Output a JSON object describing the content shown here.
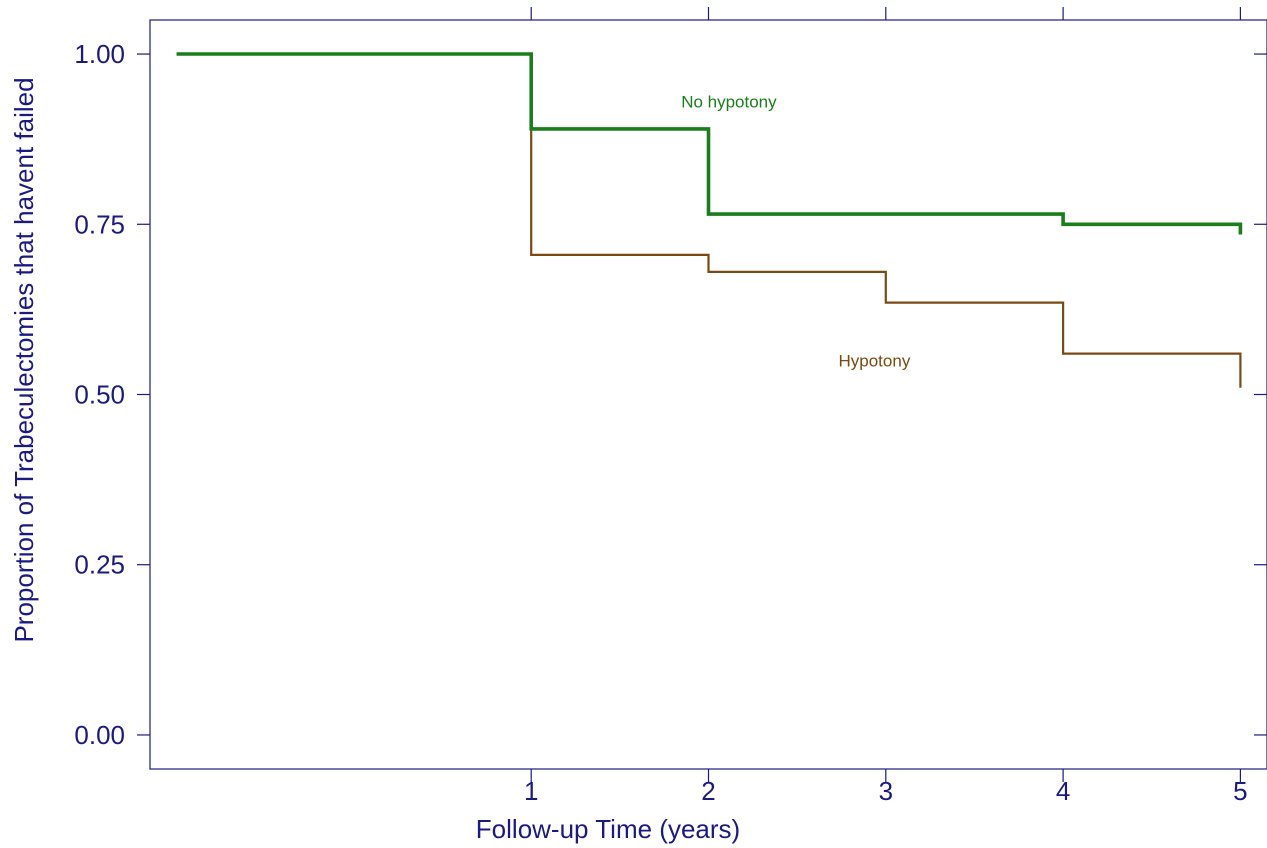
{
  "chart_data": {
    "type": "line",
    "step": true,
    "title": "",
    "xlabel": "Follow-up Time (years)",
    "ylabel": "Proportion of Trabeculectomies that havent failed",
    "xlim": [
      -1.15,
      5.15
    ],
    "ylim": [
      -0.05,
      1.05
    ],
    "x_ticks": [
      1,
      2,
      3,
      4,
      5
    ],
    "y_ticks": [
      0.0,
      0.25,
      0.5,
      0.75,
      1.0
    ],
    "x_tick_labels": [
      "1",
      "2",
      "3",
      "4",
      "5"
    ],
    "y_tick_labels": [
      "0.00",
      "0.25",
      "0.50",
      "0.75",
      "1.00"
    ],
    "grid": false,
    "series": [
      {
        "name": "No hypotony",
        "color": "#1a7f1a",
        "label_at": [
          1.0,
          0.93
        ],
        "points": [
          [
            -1.0,
            1.0
          ],
          [
            1.0,
            1.0
          ],
          [
            1.0,
            0.89
          ],
          [
            2.0,
            0.89
          ],
          [
            2.0,
            0.765
          ],
          [
            4.0,
            0.765
          ],
          [
            4.0,
            0.75
          ],
          [
            5.0,
            0.75
          ],
          [
            5.0,
            0.735
          ]
        ]
      },
      {
        "name": "Hypotony",
        "color": "#7a4a12",
        "label_at": [
          2.0,
          0.55
        ],
        "points": [
          [
            -1.0,
            1.0
          ],
          [
            1.0,
            1.0
          ],
          [
            1.0,
            0.705
          ],
          [
            2.0,
            0.705
          ],
          [
            2.0,
            0.68
          ],
          [
            3.0,
            0.68
          ],
          [
            3.0,
            0.635
          ],
          [
            4.0,
            0.635
          ],
          [
            4.0,
            0.56
          ],
          [
            5.0,
            0.56
          ],
          [
            5.0,
            0.51
          ]
        ]
      }
    ]
  }
}
